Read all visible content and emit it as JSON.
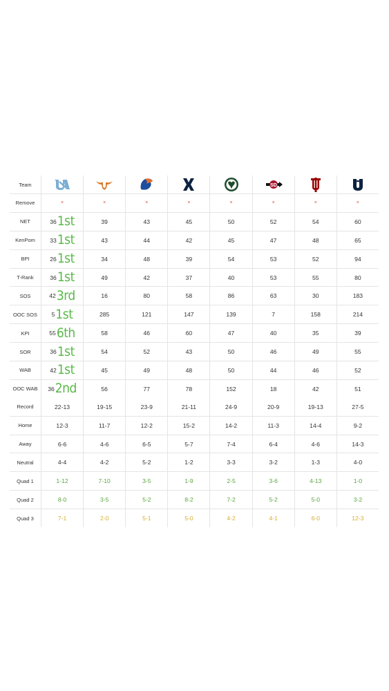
{
  "teams": [
    {
      "icon": "unc-logo-icon"
    },
    {
      "icon": "texas-longhorn-icon"
    },
    {
      "icon": "boise-state-bronco-icon"
    },
    {
      "icon": "xavier-x-icon"
    },
    {
      "icon": "colorado-state-ram-icon"
    },
    {
      "icon": "san-diego-state-icon"
    },
    {
      "icon": "indiana-iu-icon"
    },
    {
      "icon": "uc-irvine-icon"
    }
  ],
  "labels": {
    "team": "Team",
    "remove": "Remove",
    "remove_symbol": "×"
  },
  "stat_rows": [
    {
      "label": "NET",
      "values": [
        "36",
        "39",
        "43",
        "45",
        "50",
        "52",
        "54",
        "60"
      ],
      "rank": "1st"
    },
    {
      "label": "KenPom",
      "values": [
        "33",
        "43",
        "44",
        "42",
        "45",
        "47",
        "48",
        "65"
      ],
      "rank": "1st"
    },
    {
      "label": "BPI",
      "values": [
        "26",
        "34",
        "48",
        "39",
        "54",
        "53",
        "52",
        "94"
      ],
      "rank": "1st"
    },
    {
      "label": "T-Rank",
      "values": [
        "36",
        "49",
        "42",
        "37",
        "40",
        "53",
        "55",
        "80"
      ],
      "rank": "1st"
    },
    {
      "label": "SOS",
      "values": [
        "42",
        "16",
        "80",
        "58",
        "86",
        "63",
        "30",
        "183"
      ],
      "rank": "3rd"
    },
    {
      "label": "OOC SOS",
      "values": [
        "5",
        "285",
        "121",
        "147",
        "139",
        "7",
        "158",
        "214"
      ],
      "rank": "1st"
    },
    {
      "label": "KPI",
      "values": [
        "55",
        "58",
        "46",
        "60",
        "47",
        "40",
        "35",
        "39"
      ],
      "rank": "6th"
    },
    {
      "label": "SOR",
      "values": [
        "36",
        "54",
        "52",
        "43",
        "50",
        "46",
        "49",
        "55"
      ],
      "rank": "1st"
    },
    {
      "label": "WAB",
      "values": [
        "42",
        "45",
        "49",
        "48",
        "50",
        "44",
        "46",
        "52"
      ],
      "rank": "1st"
    },
    {
      "label": "OOC WAB",
      "values": [
        "36",
        "56",
        "77",
        "78",
        "152",
        "18",
        "42",
        "51"
      ],
      "rank": "2nd"
    }
  ],
  "record_rows": [
    {
      "label": "Record",
      "values": [
        "22-13",
        "19-15",
        "23-9",
        "21-11",
        "24-9",
        "20-9",
        "19-13",
        "27-5"
      ],
      "color": "default"
    },
    {
      "label": "Home",
      "values": [
        "12-3",
        "11-7",
        "12-2",
        "15-2",
        "14-2",
        "11-3",
        "14-4",
        "9-2"
      ],
      "color": "default"
    },
    {
      "label": "Away",
      "values": [
        "6-6",
        "4-6",
        "6-5",
        "5-7",
        "7-4",
        "6-4",
        "4-6",
        "14-3"
      ],
      "color": "default"
    },
    {
      "label": "Neutral",
      "values": [
        "4-4",
        "4-2",
        "5-2",
        "1-2",
        "3-3",
        "3-2",
        "1-3",
        "4-0"
      ],
      "color": "default"
    },
    {
      "label": "Quad 1",
      "values": [
        "1-12",
        "7-10",
        "3-5",
        "1-9",
        "2-5",
        "3-6",
        "4-13",
        "1-0"
      ],
      "color": "green"
    },
    {
      "label": "Quad 2",
      "values": [
        "8-0",
        "3-5",
        "5-2",
        "8-2",
        "7-2",
        "5-2",
        "5-0",
        "3-2"
      ],
      "color": "green"
    },
    {
      "label": "Quad 3",
      "values": [
        "7-1",
        "2-0",
        "5-1",
        "5-0",
        "4-2",
        "4-1",
        "6-0",
        "12-3"
      ],
      "color": "yellow"
    }
  ],
  "colors": {
    "rank_green": "#58b948",
    "quad_green": "#5aa63f",
    "quad_yellow": "#d9ad2c",
    "remove_red": "#d84a4a"
  }
}
